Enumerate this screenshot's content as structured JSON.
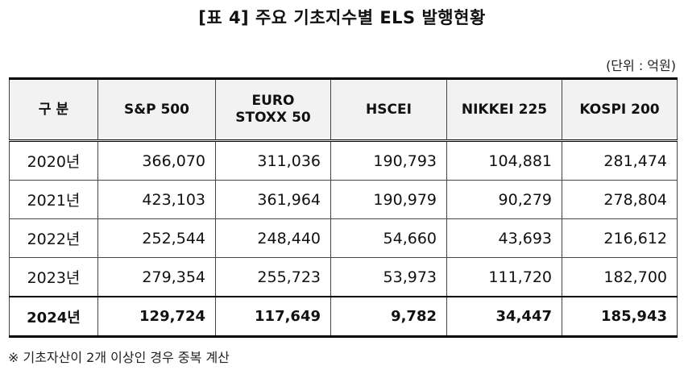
{
  "title": "[표 4] 주요 기초지수별 ELS 발행현황",
  "unit": "(단위 : 억원)",
  "table": {
    "headers": [
      "구 분",
      "S&P 500",
      "EURO\nSTOXX 50",
      "HSCEI",
      "NIKKEI 225",
      "KOSPI 200"
    ],
    "rows": [
      [
        "2020년",
        "366,070",
        "311,036",
        "190,793",
        "104,881",
        "281,474"
      ],
      [
        "2021년",
        "423,103",
        "361,964",
        "190,979",
        "90,279",
        "278,804"
      ],
      [
        "2022년",
        "252,544",
        "248,440",
        "54,660",
        "43,693",
        "216,612"
      ],
      [
        "2023년",
        "279,354",
        "255,723",
        "53,973",
        "111,720",
        "182,700"
      ]
    ],
    "total_row": [
      "2024년",
      "129,724",
      "117,649",
      "9,782",
      "34,447",
      "185,943"
    ]
  },
  "note": "※ 기초자산이 2개 이상인 경우 중복 계산"
}
